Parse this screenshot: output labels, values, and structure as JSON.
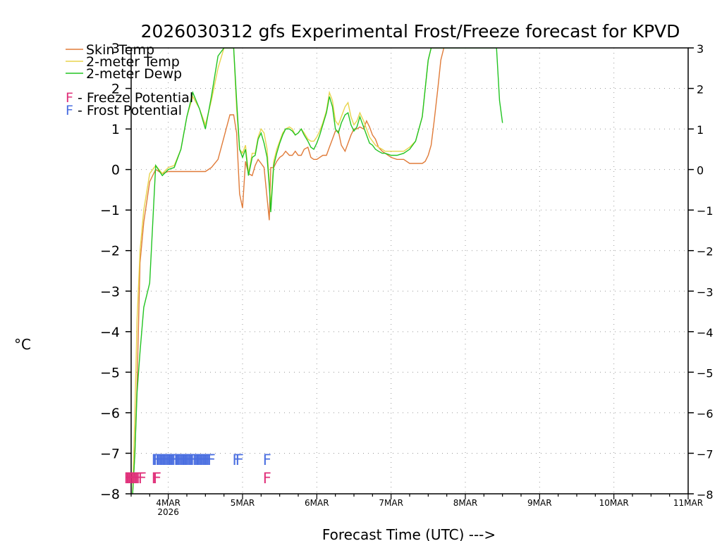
{
  "chart_data": {
    "type": "line",
    "title": "2026030312 gfs Experimental Frost/Freeze forecast for KPVD",
    "ylabel": "°C",
    "xlabel": "Forecast Time (UTC) --->",
    "ylim": [
      -8,
      3
    ],
    "xlim": [
      3.5,
      11.0
    ],
    "grid": true,
    "y_ticks": [
      -8,
      -7,
      -6,
      -5,
      -4,
      -3,
      -2,
      -1,
      0,
      1,
      2,
      3
    ],
    "y_tick_labels": [
      "−8",
      "−7",
      "−6",
      "−5",
      "−4",
      "−3",
      "−2",
      "−1",
      "0",
      "1",
      "2",
      "3"
    ],
    "right_tick_labels": [
      "−8",
      "−7",
      "−6",
      "−5",
      "−4",
      "−3",
      "−2",
      "−1",
      "0",
      "1",
      "2",
      "3"
    ],
    "x_ticks": [
      {
        "x": 4,
        "label": "4MAR",
        "sub": "2026"
      },
      {
        "x": 5,
        "label": "5MAR",
        "sub": ""
      },
      {
        "x": 6,
        "label": "6MAR",
        "sub": ""
      },
      {
        "x": 7,
        "label": "7MAR",
        "sub": ""
      },
      {
        "x": 8,
        "label": "8MAR",
        "sub": ""
      },
      {
        "x": 9,
        "label": "9MAR",
        "sub": ""
      },
      {
        "x": 10,
        "label": "10MAR",
        "sub": ""
      },
      {
        "x": 11,
        "label": "11MAR",
        "sub": ""
      }
    ],
    "legend": {
      "position": "top-left",
      "series_entries": [
        {
          "label": "Skin Temp",
          "color": "#e07b39"
        },
        {
          "label": "2-meter Temp",
          "color": "#e8d44d"
        },
        {
          "label": "2-meter Dewp",
          "color": "#22c422"
        }
      ],
      "flag_entries": [
        {
          "symbol": "F",
          "label": " - Freeze Potential",
          "color": "#e0307a"
        },
        {
          "symbol": "F",
          "label": " - Frost Potential",
          "color": "#4a6ee0"
        }
      ]
    },
    "series": [
      {
        "name": "Skin Temp",
        "color": "#e07b39",
        "x": [
          3.52,
          3.55,
          3.58,
          3.62,
          3.67,
          3.75,
          3.83,
          3.92,
          4.0,
          4.17,
          4.33,
          4.5,
          4.58,
          4.67,
          4.75,
          4.83,
          4.88,
          4.92,
          4.96,
          5.0,
          5.04,
          5.08,
          5.13,
          5.17,
          5.21,
          5.25,
          5.29,
          5.33,
          5.36,
          5.38,
          5.42,
          5.46,
          5.5,
          5.54,
          5.58,
          5.63,
          5.67,
          5.71,
          5.75,
          5.79,
          5.83,
          5.88,
          5.92,
          5.96,
          6.0,
          6.04,
          6.08,
          6.13,
          6.17,
          6.21,
          6.25,
          6.29,
          6.33,
          6.38,
          6.42,
          6.46,
          6.5,
          6.54,
          6.58,
          6.63,
          6.67,
          6.71,
          6.75,
          6.79,
          6.83,
          6.88,
          6.92,
          7.0,
          7.08,
          7.17,
          7.25,
          7.33,
          7.42,
          7.46,
          7.5,
          7.54,
          7.58,
          7.63,
          7.67,
          7.71
        ],
        "values": [
          -8.0,
          -7.0,
          -5.3,
          -2.3,
          -1.3,
          -0.3,
          0.0,
          -0.1,
          -0.05,
          -0.05,
          -0.05,
          -0.05,
          0.05,
          0.25,
          0.8,
          1.35,
          1.35,
          0.9,
          -0.6,
          -0.95,
          0.2,
          -0.1,
          -0.15,
          0.1,
          0.25,
          0.15,
          0.05,
          -0.7,
          -1.25,
          0.05,
          0.05,
          0.2,
          0.3,
          0.35,
          0.45,
          0.35,
          0.35,
          0.45,
          0.35,
          0.35,
          0.5,
          0.55,
          0.3,
          0.25,
          0.25,
          0.3,
          0.35,
          0.35,
          0.55,
          0.75,
          0.95,
          0.95,
          0.6,
          0.45,
          0.65,
          0.85,
          1.0,
          1.0,
          1.05,
          1.0,
          1.2,
          1.05,
          0.85,
          0.75,
          0.55,
          0.45,
          0.4,
          0.3,
          0.25,
          0.25,
          0.15,
          0.15,
          0.15,
          0.2,
          0.35,
          0.6,
          1.2,
          2.0,
          2.7,
          3.0
        ]
      },
      {
        "name": "2-meter Temp",
        "color": "#e8d44d",
        "x": [
          3.52,
          3.55,
          3.58,
          3.62,
          3.67,
          3.75,
          3.83,
          3.92,
          4.0,
          4.08,
          4.17,
          4.25,
          4.33,
          4.42,
          4.5,
          4.58,
          4.67,
          4.75,
          4.83,
          4.88,
          4.92,
          4.96,
          5.0,
          5.04,
          5.08,
          5.13,
          5.17,
          5.21,
          5.25,
          5.29,
          5.33,
          5.36,
          5.38,
          5.42,
          5.46,
          5.5,
          5.54,
          5.58,
          5.63,
          5.67,
          5.71,
          5.75,
          5.79,
          5.83,
          5.88,
          5.92,
          5.96,
          6.0,
          6.04,
          6.08,
          6.13,
          6.17,
          6.21,
          6.25,
          6.29,
          6.33,
          6.38,
          6.42,
          6.46,
          6.5,
          6.54,
          6.58,
          6.63,
          6.67,
          6.71,
          6.75,
          6.79,
          6.83,
          6.88,
          6.92,
          7.0,
          7.08,
          7.17,
          7.25,
          7.33,
          7.42,
          7.46,
          7.5,
          7.54,
          7.58,
          7.63,
          7.67,
          7.71
        ],
        "values": [
          -8.0,
          -6.0,
          -3.7,
          -2.0,
          -1.0,
          -0.1,
          0.1,
          -0.1,
          0.05,
          0.1,
          0.5,
          1.3,
          1.8,
          1.5,
          1.1,
          1.7,
          2.5,
          3.0,
          3.0,
          3.0,
          1.5,
          0.5,
          0.4,
          0.6,
          -0.1,
          0.4,
          0.4,
          0.8,
          1.0,
          0.9,
          0.5,
          -0.3,
          -0.9,
          0.2,
          0.5,
          0.7,
          0.9,
          1.0,
          1.05,
          1.0,
          0.85,
          0.9,
          1.0,
          0.9,
          0.75,
          0.7,
          0.7,
          0.8,
          0.95,
          1.15,
          1.45,
          1.9,
          1.7,
          1.2,
          1.1,
          1.3,
          1.55,
          1.65,
          1.3,
          1.1,
          1.2,
          1.4,
          1.2,
          1.0,
          0.8,
          0.7,
          0.6,
          0.55,
          0.5,
          0.45,
          0.45,
          0.45,
          0.45,
          0.55,
          0.7,
          1.3,
          2.0,
          2.7,
          3.0,
          3.0,
          3.0,
          3.0,
          3.0
        ]
      },
      {
        "name": "2-meter Dewp",
        "color": "#22c422",
        "x": [
          3.52,
          3.55,
          3.58,
          3.62,
          3.67,
          3.75,
          3.83,
          3.92,
          4.0,
          4.08,
          4.17,
          4.25,
          4.33,
          4.42,
          4.5,
          4.58,
          4.67,
          4.75,
          4.83,
          4.88,
          4.92,
          4.96,
          5.0,
          5.04,
          5.08,
          5.13,
          5.17,
          5.21,
          5.25,
          5.29,
          5.33,
          5.36,
          5.38,
          5.42,
          5.46,
          5.5,
          5.54,
          5.58,
          5.63,
          5.67,
          5.71,
          5.75,
          5.79,
          5.83,
          5.88,
          5.92,
          5.96,
          6.0,
          6.04,
          6.08,
          6.13,
          6.17,
          6.21,
          6.25,
          6.29,
          6.33,
          6.38,
          6.42,
          6.46,
          6.5,
          6.54,
          6.58,
          6.63,
          6.67,
          6.71,
          6.75,
          6.79,
          6.83,
          6.88,
          6.92,
          7.0,
          7.08,
          7.17,
          7.25,
          7.33,
          7.42,
          7.46,
          7.5,
          7.54,
          7.58,
          7.63,
          7.67,
          7.71,
          8.42,
          8.46,
          8.5
        ],
        "values": [
          -8.0,
          -7.0,
          -5.5,
          -4.5,
          -3.4,
          -2.8,
          0.1,
          -0.15,
          0.0,
          0.05,
          0.5,
          1.3,
          1.9,
          1.5,
          1.0,
          1.8,
          2.8,
          3.0,
          3.0,
          3.0,
          1.7,
          0.5,
          0.3,
          0.5,
          -0.15,
          0.3,
          0.35,
          0.75,
          0.9,
          0.65,
          0.3,
          -0.4,
          -1.05,
          0.1,
          0.4,
          0.65,
          0.85,
          1.0,
          1.0,
          0.95,
          0.85,
          0.9,
          1.0,
          0.85,
          0.7,
          0.55,
          0.5,
          0.65,
          0.85,
          1.1,
          1.4,
          1.8,
          1.55,
          1.0,
          0.9,
          1.15,
          1.35,
          1.4,
          1.1,
          0.95,
          1.05,
          1.3,
          1.05,
          0.85,
          0.65,
          0.6,
          0.5,
          0.45,
          0.4,
          0.4,
          0.35,
          0.35,
          0.4,
          0.5,
          0.7,
          1.3,
          2.0,
          2.7,
          3.0,
          3.0,
          3.0,
          3.0,
          3.0,
          3.0,
          1.7,
          1.15
        ]
      }
    ],
    "flags": {
      "frost": {
        "symbol": "F",
        "color": "#4a6ee0",
        "y": -7.15,
        "x": [
          3.83,
          3.85,
          3.88,
          3.9,
          3.92,
          3.94,
          3.96,
          3.98,
          4.0,
          4.02,
          4.04,
          4.06,
          4.08,
          4.1,
          4.13,
          4.15,
          4.17,
          4.19,
          4.21,
          4.23,
          4.25,
          4.27,
          4.29,
          4.31,
          4.33,
          4.35,
          4.38,
          4.4,
          4.42,
          4.44,
          4.46,
          4.48,
          4.5,
          4.52,
          4.54,
          4.56,
          4.58,
          4.92,
          4.96,
          5.33
        ]
      },
      "freeze": {
        "symbol": "F",
        "color": "#e0307a",
        "y": -7.6,
        "x": [
          3.46,
          3.48,
          3.5,
          3.52,
          3.54,
          3.56,
          3.58,
          3.6,
          3.62,
          3.65,
          3.83,
          3.85,
          5.33
        ]
      }
    }
  }
}
